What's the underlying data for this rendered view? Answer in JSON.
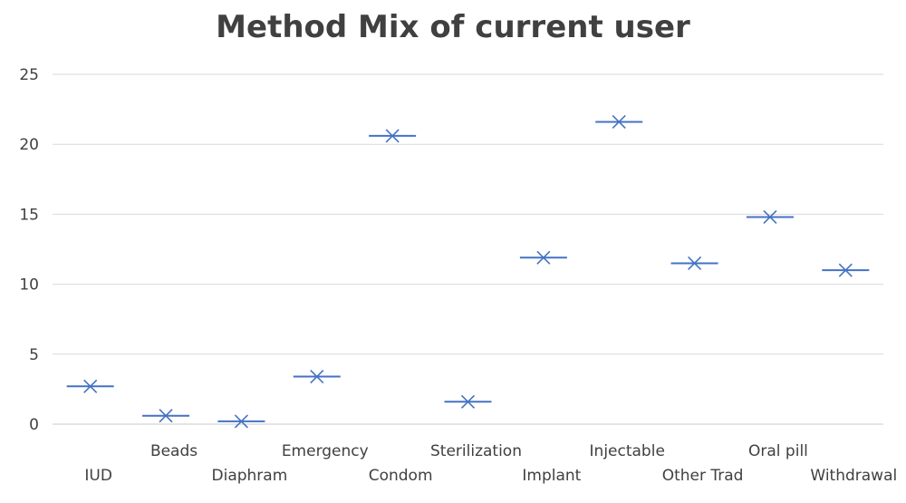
{
  "chart_data": {
    "type": "scatter",
    "title": "Method Mix of current user",
    "xlabel": "",
    "ylabel": "",
    "ylim": [
      0,
      25
    ],
    "yticks": [
      0,
      5,
      10,
      15,
      20,
      25
    ],
    "grid": true,
    "legend": "none",
    "marker": "x-with-dash",
    "color": "#4472C4",
    "categories": [
      "IUD",
      "Beads",
      "Diaphram",
      "Emergency",
      "Condom",
      "Sterilization",
      "Implant",
      "Injectable",
      "Other Trad",
      "Oral pill",
      "Withdrawal"
    ],
    "values": [
      2.7,
      0.6,
      0.2,
      3.4,
      20.6,
      1.6,
      11.9,
      21.6,
      11.5,
      14.8,
      11.0
    ]
  }
}
